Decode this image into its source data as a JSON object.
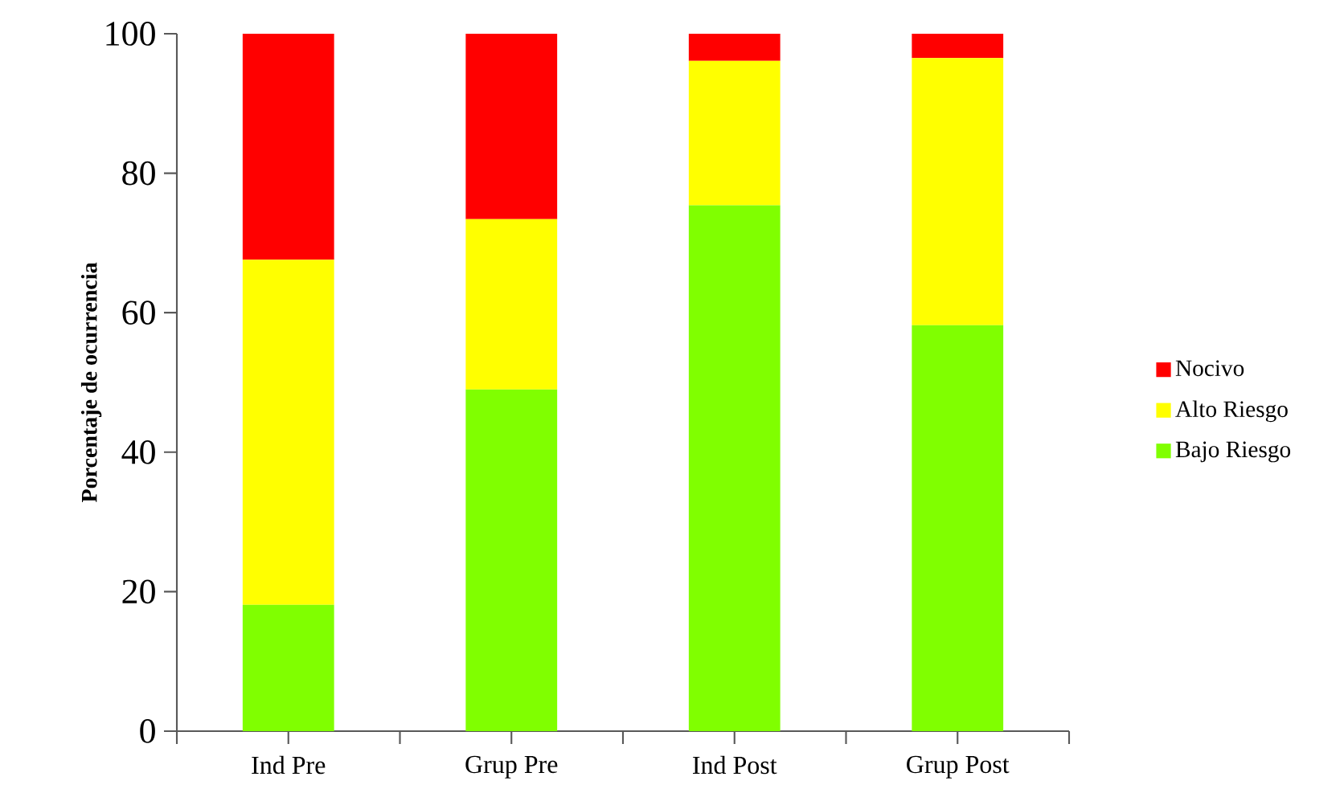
{
  "chart_data": {
    "type": "bar",
    "stacked": true,
    "ylabel": "Porcentaje de ocurrencia",
    "categories": [
      "Ind Pre",
      "Grup Pre",
      "Ind Post",
      "Grup Post"
    ],
    "series": [
      {
        "name": "Bajo Riesgo",
        "color": "#80ff00",
        "values": [
          18.1,
          49.0,
          75.4,
          58.2
        ]
      },
      {
        "name": "Alto Riesgo",
        "color": "#ffff00",
        "values": [
          49.5,
          24.4,
          20.7,
          38.3
        ]
      },
      {
        "name": "Nocivo",
        "color": "#ff0000",
        "values": [
          32.4,
          26.6,
          3.9,
          3.5
        ]
      }
    ],
    "ylim": [
      0,
      100
    ],
    "yticks": [
      0,
      20,
      40,
      60,
      80,
      100
    ],
    "legend": "right"
  }
}
